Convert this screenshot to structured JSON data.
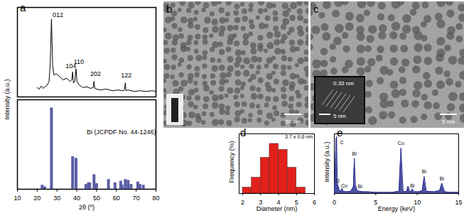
{
  "chart_data": [
    {
      "type": "line",
      "title": "a",
      "y_label": "Intensity (a.u.)",
      "color": "#000000",
      "x": [
        20,
        21,
        22,
        23,
        24,
        25,
        26,
        26.6,
        27.2,
        27.8,
        28.5,
        29.5,
        31,
        33,
        35,
        36.5,
        37.5,
        37.9,
        38.3,
        39.0,
        39.6,
        40.1,
        41,
        43,
        45,
        47,
        48.3,
        48.7,
        49.1,
        50,
        52,
        55,
        58,
        61,
        63,
        64.1,
        64.5,
        64.9,
        66,
        69,
        72,
        75,
        78,
        80
      ],
      "values": [
        12,
        10,
        14,
        11,
        13,
        15,
        20,
        45,
        100,
        40,
        28,
        30,
        27,
        22,
        24,
        20,
        22,
        32,
        18,
        20,
        36,
        20,
        16,
        12,
        13,
        11,
        12,
        20,
        11,
        10,
        9,
        10,
        8,
        9,
        8,
        9,
        18,
        8,
        9,
        7,
        8,
        7,
        8,
        7
      ],
      "xlim": [
        10,
        80
      ],
      "ylim": [
        0,
        115
      ],
      "tick_labels": false,
      "annotations": [
        {
          "x": 30.5,
          "y": 100,
          "text": "012"
        },
        {
          "x": 37.0,
          "y": 34,
          "text": "104"
        },
        {
          "x": 41.0,
          "y": 40,
          "text": "110"
        },
        {
          "x": 49.5,
          "y": 24,
          "text": "202"
        },
        {
          "x": 65.0,
          "y": 22,
          "text": "122"
        }
      ]
    },
    {
      "type": "bar",
      "x_label": "2θ (º)",
      "color": "#5b5ea6",
      "x": [
        22.5,
        23.8,
        27.2,
        37.9,
        39.6,
        44.6,
        45.9,
        46.5,
        48.7,
        50.0,
        56.0,
        59.3,
        62.2,
        62.9,
        64.5,
        65.9,
        67.4,
        70.8,
        71.9,
        73.6
      ],
      "values": [
        5,
        3,
        100,
        40,
        38,
        6,
        8,
        8,
        18,
        7,
        12,
        8,
        10,
        5,
        12,
        11,
        6,
        9,
        6,
        5
      ],
      "xlim": [
        10,
        80
      ],
      "xticks": [
        10,
        20,
        30,
        40,
        50,
        60,
        70,
        80
      ],
      "ylim": [
        0,
        110
      ],
      "tick_labels": "x",
      "annotations": [
        {
          "x": 45,
          "y": 70,
          "text": "Bi (JCPDF No. 44-1246)"
        }
      ]
    },
    {
      "type": "histogram",
      "title": "d",
      "x_label": "Diameter (nm)",
      "y_label": "Frequency (%)",
      "color": "#e3201b",
      "bins": [
        2,
        2.5,
        3,
        3.5,
        4,
        4.5,
        5,
        5.5
      ],
      "values": [
        3,
        8,
        18,
        25,
        22,
        13,
        3
      ],
      "xlim": [
        1.8,
        6
      ],
      "xticks": [
        2,
        3,
        4,
        5,
        6
      ],
      "ylim": [
        0,
        30
      ],
      "tick_labels": "x",
      "annotations": [
        {
          "x": 5.9,
          "y": 28.5,
          "text": "3.7 ± 0.6 nm"
        }
      ]
    },
    {
      "type": "line",
      "title": "e",
      "x_label": "Energy (keV)",
      "y_label": "Intensity (a.u.)",
      "color": "#2e3192",
      "x": [
        0,
        0.1,
        0.2,
        0.28,
        0.35,
        0.45,
        0.52,
        0.6,
        0.8,
        0.93,
        1.05,
        1.5,
        2.0,
        2.3,
        2.42,
        2.55,
        2.7,
        2.8,
        3.0,
        3.5,
        4,
        5,
        6,
        7,
        7.8,
        8.04,
        8.3,
        8.7,
        8.9,
        9.1,
        9.3,
        9.42,
        9.6,
        10.2,
        10.6,
        10.84,
        11.1,
        12,
        12.7,
        12.98,
        13.3,
        14,
        15
      ],
      "values": [
        0,
        40,
        95,
        100,
        30,
        8,
        12,
        5,
        4,
        9,
        4,
        3,
        4,
        12,
        62,
        15,
        8,
        5,
        4,
        3,
        3,
        2,
        2,
        2,
        4,
        80,
        4,
        3,
        13,
        3,
        4,
        8,
        3,
        3,
        5,
        30,
        4,
        3,
        5,
        18,
        3,
        2,
        2
      ],
      "xlim": [
        0,
        15
      ],
      "xticks": [
        0,
        5,
        10,
        15
      ],
      "ylim": [
        0,
        105
      ],
      "tick_labels": "x",
      "annotations": [
        {
          "x": 0.9,
          "y": 90,
          "text": "C"
        },
        {
          "x": 0.4,
          "y": 22,
          "text": "O"
        },
        {
          "x": 1.2,
          "y": 14,
          "text": "Cu"
        },
        {
          "x": 2.42,
          "y": 70,
          "text": "Bi"
        },
        {
          "x": 3.1,
          "y": 12,
          "text": "Bi"
        },
        {
          "x": 8.04,
          "y": 88,
          "text": "Cu"
        },
        {
          "x": 9.42,
          "y": 14,
          "text": "Bi"
        },
        {
          "x": 10.84,
          "y": 38,
          "text": "Bi"
        },
        {
          "x": 12.98,
          "y": 26,
          "text": "Bi"
        }
      ]
    }
  ],
  "image_panels": [
    {
      "title": "b",
      "scale_bar": "20 nm"
    },
    {
      "title": "c",
      "scale_bar": "5 nm",
      "inset_labels": [
        "0.33 nm",
        "5 nm"
      ]
    }
  ]
}
